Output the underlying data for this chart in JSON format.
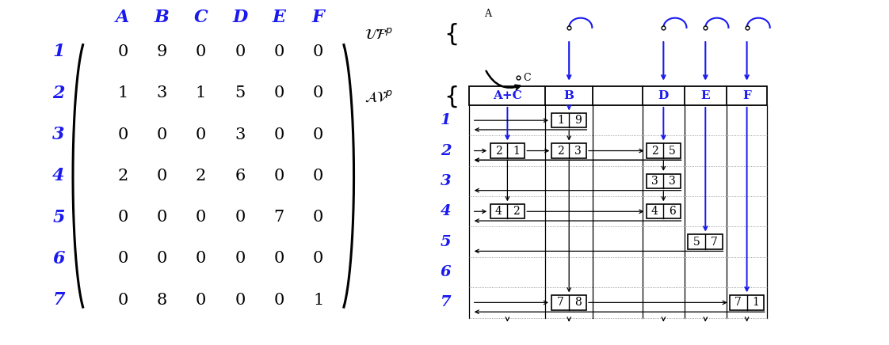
{
  "matrix": [
    [
      0,
      9,
      0,
      0,
      0,
      0
    ],
    [
      1,
      3,
      1,
      5,
      0,
      0
    ],
    [
      0,
      0,
      0,
      3,
      0,
      0
    ],
    [
      2,
      0,
      2,
      6,
      0,
      0
    ],
    [
      0,
      0,
      0,
      0,
      7,
      0
    ],
    [
      0,
      0,
      0,
      0,
      0,
      0
    ],
    [
      0,
      8,
      0,
      0,
      0,
      1
    ]
  ],
  "col_labels": [
    "A",
    "B",
    "C",
    "D",
    "E",
    "F"
  ],
  "row_labels": [
    "1",
    "2",
    "3",
    "4",
    "5",
    "6",
    "7"
  ],
  "blue_color": "#1a1aee",
  "black_color": "#000000",
  "avp_segments": [
    "A+C",
    "B",
    "",
    "D",
    "E",
    "F"
  ],
  "nonzero_entries": [
    {
      "row_idx": 0,
      "col_idx": 1,
      "val": "19"
    },
    {
      "row_idx": 1,
      "col_idx": 0,
      "val": "21"
    },
    {
      "row_idx": 1,
      "col_idx": 1,
      "val": "23"
    },
    {
      "row_idx": 1,
      "col_idx": 3,
      "val": "25"
    },
    {
      "row_idx": 2,
      "col_idx": 3,
      "val": "33"
    },
    {
      "row_idx": 3,
      "col_idx": 0,
      "val": "42"
    },
    {
      "row_idx": 3,
      "col_idx": 3,
      "val": "46"
    },
    {
      "row_idx": 4,
      "col_idx": 4,
      "val": "57"
    },
    {
      "row_idx": 6,
      "col_idx": 1,
      "val": "78"
    },
    {
      "row_idx": 6,
      "col_idx": 5,
      "val": "71"
    }
  ]
}
